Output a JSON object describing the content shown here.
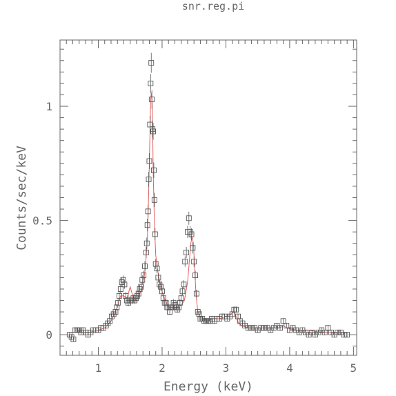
{
  "chart_data": {
    "type": "scatter",
    "title": "snr.reg.pi",
    "xlabel": "Energy (keV)",
    "ylabel": "Counts/sec/keV",
    "xlim": [
      0.4,
      5.05
    ],
    "ylim": [
      -0.09,
      1.29
    ],
    "xticks": [
      1,
      2,
      3,
      4,
      5
    ],
    "xtick_labels": [
      "1",
      "2",
      "3",
      "4",
      "5"
    ],
    "yticks": [
      0,
      0.5,
      1
    ],
    "ytick_labels": [
      "0",
      "0.5",
      "1"
    ],
    "grid": false,
    "colors": {
      "data": "#555555",
      "model": "#e06060",
      "axes": "#666666"
    },
    "series": [
      {
        "kind": "data-points-with-error-bars",
        "marker": "open-square",
        "x": [
          0.55,
          0.58,
          0.61,
          0.64,
          0.67,
          0.7,
          0.73,
          0.76,
          0.8,
          0.84,
          0.88,
          0.92,
          0.96,
          1.0,
          1.04,
          1.08,
          1.12,
          1.15,
          1.18,
          1.21,
          1.24,
          1.27,
          1.29,
          1.31,
          1.33,
          1.35,
          1.37,
          1.39,
          1.41,
          1.43,
          1.45,
          1.47,
          1.49,
          1.51,
          1.53,
          1.55,
          1.57,
          1.59,
          1.61,
          1.63,
          1.65,
          1.67,
          1.69,
          1.71,
          1.73,
          1.75,
          1.76,
          1.77,
          1.78,
          1.79,
          1.8,
          1.81,
          1.82,
          1.83,
          1.84,
          1.85,
          1.86,
          1.87,
          1.88,
          1.89,
          1.9,
          1.92,
          1.94,
          1.96,
          1.98,
          2.0,
          2.02,
          2.04,
          2.06,
          2.08,
          2.1,
          2.12,
          2.14,
          2.16,
          2.18,
          2.2,
          2.22,
          2.24,
          2.26,
          2.28,
          2.3,
          2.32,
          2.34,
          2.36,
          2.38,
          2.4,
          2.42,
          2.44,
          2.46,
          2.48,
          2.5,
          2.52,
          2.54,
          2.56,
          2.58,
          2.6,
          2.63,
          2.66,
          2.69,
          2.72,
          2.75,
          2.78,
          2.82,
          2.86,
          2.9,
          2.94,
          2.98,
          3.02,
          3.06,
          3.1,
          3.13,
          3.16,
          3.19,
          3.22,
          3.26,
          3.3,
          3.35,
          3.4,
          3.45,
          3.5,
          3.55,
          3.6,
          3.65,
          3.7,
          3.75,
          3.8,
          3.85,
          3.9,
          3.95,
          4.0,
          4.05,
          4.1,
          4.15,
          4.2,
          4.25,
          4.3,
          4.35,
          4.4,
          4.45,
          4.5,
          4.55,
          4.6,
          4.65,
          4.7,
          4.75,
          4.8,
          4.85,
          4.9
        ],
        "y": [
          0.0,
          -0.01,
          -0.02,
          0.02,
          0.02,
          0.02,
          0.01,
          0.02,
          0.01,
          0.0,
          0.01,
          0.02,
          0.02,
          0.02,
          0.03,
          0.03,
          0.04,
          0.05,
          0.06,
          0.08,
          0.09,
          0.1,
          0.12,
          0.14,
          0.17,
          0.2,
          0.23,
          0.24,
          0.22,
          0.17,
          0.15,
          0.14,
          0.15,
          0.15,
          0.15,
          0.16,
          0.15,
          0.16,
          0.17,
          0.18,
          0.2,
          0.21,
          0.24,
          0.26,
          0.3,
          0.36,
          0.4,
          0.48,
          0.54,
          0.68,
          0.76,
          0.92,
          1.1,
          1.19,
          1.03,
          0.9,
          0.89,
          0.72,
          0.59,
          0.44,
          0.31,
          0.29,
          0.25,
          0.22,
          0.21,
          0.19,
          0.16,
          0.14,
          0.14,
          0.12,
          0.12,
          0.1,
          0.12,
          0.12,
          0.14,
          0.13,
          0.12,
          0.11,
          0.12,
          0.14,
          0.16,
          0.19,
          0.22,
          0.32,
          0.36,
          0.45,
          0.51,
          0.45,
          0.44,
          0.38,
          0.32,
          0.26,
          0.18,
          0.1,
          0.09,
          0.07,
          0.07,
          0.06,
          0.06,
          0.06,
          0.06,
          0.07,
          0.06,
          0.07,
          0.07,
          0.08,
          0.08,
          0.07,
          0.08,
          0.09,
          0.11,
          0.11,
          0.08,
          0.06,
          0.05,
          0.04,
          0.03,
          0.03,
          0.03,
          0.02,
          0.03,
          0.03,
          0.03,
          0.02,
          0.03,
          0.04,
          0.03,
          0.06,
          0.04,
          0.02,
          0.03,
          0.02,
          0.01,
          0.02,
          0.01,
          0.0,
          0.01,
          0.0,
          0.01,
          0.02,
          0.01,
          0.03,
          0.01,
          0.0,
          0.01,
          0.01,
          0.0,
          0.0
        ]
      },
      {
        "kind": "model-line",
        "x": [
          0.55,
          0.7,
          0.85,
          1.0,
          1.1,
          1.2,
          1.3,
          1.35,
          1.4,
          1.45,
          1.5,
          1.55,
          1.6,
          1.65,
          1.7,
          1.74,
          1.77,
          1.79,
          1.81,
          1.82,
          1.83,
          1.84,
          1.85,
          1.86,
          1.88,
          1.9,
          1.92,
          1.95,
          2.0,
          2.05,
          2.1,
          2.15,
          2.2,
          2.25,
          2.3,
          2.35,
          2.4,
          2.43,
          2.45,
          2.47,
          2.49,
          2.51,
          2.53,
          2.56,
          2.6,
          2.65,
          2.7,
          2.8,
          2.9,
          3.0,
          3.08,
          3.12,
          3.16,
          3.2,
          3.25,
          3.35,
          3.5,
          3.7,
          3.85,
          3.9,
          3.95,
          4.1,
          4.3,
          4.5,
          4.7,
          4.9
        ],
        "y": [
          0.01,
          0.01,
          0.01,
          0.02,
          0.03,
          0.06,
          0.12,
          0.17,
          0.17,
          0.16,
          0.21,
          0.16,
          0.15,
          0.18,
          0.21,
          0.3,
          0.42,
          0.62,
          0.88,
          1.02,
          1.06,
          1.03,
          0.95,
          0.72,
          0.48,
          0.35,
          0.3,
          0.25,
          0.19,
          0.15,
          0.12,
          0.12,
          0.11,
          0.12,
          0.13,
          0.15,
          0.23,
          0.33,
          0.4,
          0.43,
          0.4,
          0.3,
          0.18,
          0.1,
          0.08,
          0.07,
          0.06,
          0.07,
          0.07,
          0.08,
          0.09,
          0.1,
          0.08,
          0.05,
          0.04,
          0.03,
          0.03,
          0.03,
          0.03,
          0.04,
          0.03,
          0.02,
          0.02,
          0.01,
          0.01,
          0.01
        ]
      }
    ]
  }
}
